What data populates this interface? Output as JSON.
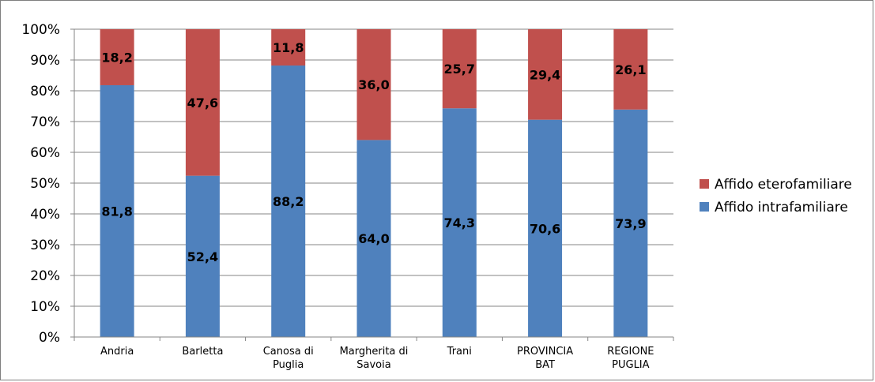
{
  "chart_data": {
    "type": "bar",
    "stacked": true,
    "percent_stacked": true,
    "categories": [
      [
        "Andria"
      ],
      [
        "Barletta"
      ],
      [
        "Canosa di",
        "Puglia"
      ],
      [
        "Margherita di",
        "Savoia"
      ],
      [
        "Trani"
      ],
      [
        "PROVINCIA",
        "BAT"
      ],
      [
        "REGIONE",
        "PUGLIA"
      ]
    ],
    "series": [
      {
        "name": "Affido intrafamiliare",
        "color": "#4f81bd",
        "values": [
          81.8,
          52.4,
          88.2,
          64.0,
          74.3,
          70.6,
          73.9
        ],
        "labels": [
          "81,8",
          "52,4",
          "88,2",
          "64,0",
          "74,3",
          "70,6",
          "73,9"
        ]
      },
      {
        "name": "Affido eterofamiliare",
        "color": "#c0504d",
        "values": [
          18.2,
          47.6,
          11.8,
          36.0,
          25.7,
          29.4,
          26.1
        ],
        "labels": [
          "18,2",
          "47,6",
          "11,8",
          "36,0",
          "25,7",
          "29,4",
          "26,1"
        ]
      }
    ],
    "y_ticks": [
      "0%",
      "10%",
      "20%",
      "30%",
      "40%",
      "50%",
      "60%",
      "70%",
      "80%",
      "90%",
      "100%"
    ],
    "ylim": [
      0,
      100
    ],
    "title": "",
    "xlabel": "",
    "ylabel": "",
    "grid": true,
    "legend_position": "right",
    "legend_order": [
      "Affido eterofamiliare",
      "Affido intrafamiliare"
    ]
  }
}
